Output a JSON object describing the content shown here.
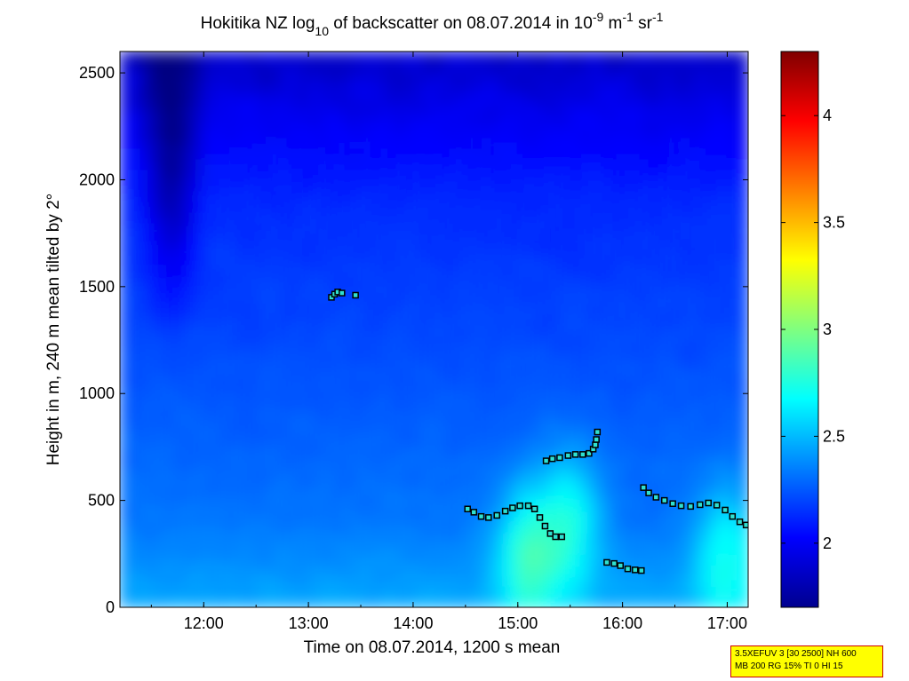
{
  "chart_data": {
    "type": "heatmap",
    "title": {
      "prefix": "Hokitika NZ log",
      "sub": "10",
      "middle": " of backscatter on 08.07.2014 in 10",
      "sup1": "-9",
      "unit_m": " m",
      "sup2": "-1",
      "unit_sr": " sr",
      "sup3": "-1"
    },
    "xlabel": "Time on 08.07.2014, 1200 s mean",
    "ylabel": "Height in m, 240 m mean tilted by 2°",
    "xlim_hours": [
      11.2,
      17.2
    ],
    "ylim": [
      0,
      2600
    ],
    "xticks": [
      {
        "value": 12,
        "label": "12:00"
      },
      {
        "value": 13,
        "label": "13:00"
      },
      {
        "value": 14,
        "label": "14:00"
      },
      {
        "value": 15,
        "label": "15:00"
      },
      {
        "value": 16,
        "label": "16:00"
      },
      {
        "value": 17,
        "label": "17:00"
      }
    ],
    "yticks": [
      {
        "value": 0,
        "label": "0"
      },
      {
        "value": 500,
        "label": "500"
      },
      {
        "value": 1000,
        "label": "1000"
      },
      {
        "value": 1500,
        "label": "1500"
      },
      {
        "value": 2000,
        "label": "2000"
      },
      {
        "value": 2500,
        "label": "2500"
      }
    ],
    "colorbar": {
      "range": [
        1.7,
        4.3
      ],
      "ticks": [
        {
          "value": 2,
          "label": "2"
        },
        {
          "value": 2.5,
          "label": "2.5"
        },
        {
          "value": 3,
          "label": "3"
        },
        {
          "value": 3.5,
          "label": "3.5"
        },
        {
          "value": 4,
          "label": "4"
        }
      ],
      "colormap": "jet"
    },
    "field_description": {
      "background_level": 2.2,
      "upper_level": 2.0,
      "plume_center_hour": 11.7,
      "bright_spots": [
        {
          "hour": 15.1,
          "height": 250,
          "level": 2.65
        },
        {
          "hour": 15.5,
          "height": 400,
          "level": 2.6
        },
        {
          "hour": 17.0,
          "height": 250,
          "level": 2.55
        }
      ]
    },
    "cloud_base_series": [
      {
        "name": "",
        "points": [
          [
            13.22,
            1450
          ],
          [
            13.25,
            1465
          ],
          [
            13.28,
            1475
          ],
          [
            13.32,
            1470
          ],
          [
            13.45,
            1460
          ]
        ]
      },
      {
        "name": "",
        "points": [
          [
            14.52,
            460
          ],
          [
            14.58,
            445
          ],
          [
            14.65,
            425
          ],
          [
            14.72,
            420
          ],
          [
            14.8,
            430
          ],
          [
            14.88,
            450
          ],
          [
            14.95,
            465
          ],
          [
            15.02,
            475
          ],
          [
            15.1,
            475
          ],
          [
            15.16,
            460
          ],
          [
            15.21,
            420
          ],
          [
            15.26,
            380
          ],
          [
            15.31,
            345
          ],
          [
            15.36,
            330
          ],
          [
            15.42,
            330
          ]
        ]
      },
      {
        "name": "",
        "points": [
          [
            15.27,
            685
          ],
          [
            15.33,
            695
          ],
          [
            15.4,
            700
          ],
          [
            15.48,
            710
          ],
          [
            15.55,
            715
          ],
          [
            15.62,
            715
          ],
          [
            15.68,
            720
          ],
          [
            15.72,
            740
          ],
          [
            15.74,
            760
          ],
          [
            15.75,
            785
          ],
          [
            15.76,
            820
          ]
        ]
      },
      {
        "name": "",
        "points": [
          [
            15.85,
            210
          ],
          [
            15.92,
            205
          ],
          [
            15.98,
            195
          ],
          [
            16.05,
            180
          ],
          [
            16.12,
            175
          ],
          [
            16.18,
            172
          ]
        ]
      },
      {
        "name": "",
        "points": [
          [
            16.2,
            560
          ],
          [
            16.25,
            535
          ],
          [
            16.32,
            515
          ],
          [
            16.4,
            500
          ],
          [
            16.48,
            485
          ],
          [
            16.56,
            475
          ],
          [
            16.65,
            472
          ],
          [
            16.74,
            480
          ],
          [
            16.82,
            488
          ],
          [
            16.9,
            478
          ],
          [
            16.98,
            455
          ],
          [
            17.05,
            425
          ],
          [
            17.12,
            400
          ],
          [
            17.18,
            385
          ]
        ]
      }
    ]
  },
  "info_box": {
    "line1": "3.5XEFUV 3 [30 2500] NH 600",
    "line2": "MB 200 RG 15% TI 0 HI 15"
  }
}
